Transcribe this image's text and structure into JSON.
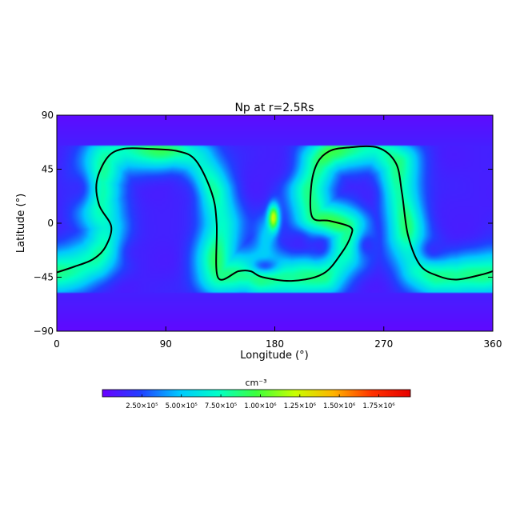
{
  "chart_data": {
    "type": "heatmap",
    "title": "Np at r=2.5Rs",
    "xlabel": "Longitude (°)",
    "ylabel": "Latitude (°)",
    "xlim": [
      0,
      360
    ],
    "ylim": [
      -90,
      90
    ],
    "xticks": [
      0,
      90,
      180,
      270,
      360
    ],
    "yticks": [
      90,
      45,
      0,
      -45,
      -90
    ],
    "ytick_labels": [
      "90",
      "45",
      "0",
      "−45",
      "−90"
    ],
    "grid": false,
    "colormap": "rainbow",
    "colorbar": {
      "unit": "cm⁻³",
      "ticks": [
        250000,
        500000,
        750000,
        1000000,
        1250000,
        1500000,
        1750000
      ],
      "tick_labels": [
        "2.50×10⁵",
        "5.00×10⁵",
        "7.50×10⁵",
        "1.00×10⁶",
        "1.25×10⁶",
        "1.50×10⁶",
        "1.75×10⁶"
      ],
      "range": [
        0,
        1950000
      ],
      "colors": [
        "#6a00ff",
        "#2040ff",
        "#00c8ff",
        "#00ffc8",
        "#3cff3c",
        "#c8ff00",
        "#ffb400",
        "#ff3200",
        "#e60000"
      ]
    },
    "background_level": 120000,
    "belt_level": 850000,
    "hotspot": {
      "lon": 179,
      "lat": 5,
      "value": 1850000
    },
    "neutral_line": [
      [
        0,
        -41
      ],
      [
        15,
        -36
      ],
      [
        30,
        -30
      ],
      [
        40,
        -20
      ],
      [
        45,
        -3
      ],
      [
        35,
        15
      ],
      [
        33,
        35
      ],
      [
        42,
        55
      ],
      [
        55,
        62
      ],
      [
        75,
        62
      ],
      [
        100,
        60
      ],
      [
        115,
        52
      ],
      [
        128,
        25
      ],
      [
        132,
        0
      ],
      [
        133,
        -45
      ],
      [
        150,
        -40
      ],
      [
        160,
        -40
      ],
      [
        170,
        -45
      ],
      [
        195,
        -48
      ],
      [
        220,
        -42
      ],
      [
        235,
        -25
      ],
      [
        243,
        -10
      ],
      [
        242,
        -3
      ],
      [
        225,
        2
      ],
      [
        211,
        5
      ],
      [
        210,
        30
      ],
      [
        215,
        50
      ],
      [
        225,
        60
      ],
      [
        240,
        63
      ],
      [
        265,
        63
      ],
      [
        280,
        50
      ],
      [
        285,
        25
      ],
      [
        290,
        -10
      ],
      [
        300,
        -35
      ],
      [
        315,
        -44
      ],
      [
        330,
        -47
      ],
      [
        350,
        -43
      ],
      [
        360,
        -40
      ]
    ],
    "low_density_regions": [
      {
        "lon": 85,
        "lat": 0,
        "rlon": 40,
        "rlat": 28
      },
      {
        "lon": 105,
        "lat": 25,
        "rlon": 22,
        "rlat": 28
      },
      {
        "lon": 65,
        "lat": -25,
        "rlon": 22,
        "rlat": 18
      },
      {
        "lon": 18,
        "lat": 30,
        "rlon": 16,
        "rlat": 22
      },
      {
        "lon": 178,
        "lat": 45,
        "rlon": 24,
        "rlat": 16
      },
      {
        "lon": 200,
        "lat": -15,
        "rlon": 13,
        "rlat": 13
      },
      {
        "lon": 218,
        "lat": -20,
        "rlon": 12,
        "rlat": 14
      },
      {
        "lon": 172,
        "lat": -35,
        "rlon": 14,
        "rlat": 8
      },
      {
        "lon": 258,
        "lat": 25,
        "rlon": 15,
        "rlat": 20
      },
      {
        "lon": 256,
        "lat": -18,
        "rlon": 12,
        "rlat": 15
      },
      {
        "lon": 325,
        "lat": 10,
        "rlon": 28,
        "rlat": 30
      },
      {
        "lon": 310,
        "lat": -22,
        "rlon": 16,
        "rlat": 14
      },
      {
        "lon": 175,
        "lat": -65,
        "rlon": 180,
        "rlat": 6
      },
      {
        "lon": 175,
        "lat": 76,
        "rlon": 180,
        "rlat": 9
      }
    ]
  }
}
